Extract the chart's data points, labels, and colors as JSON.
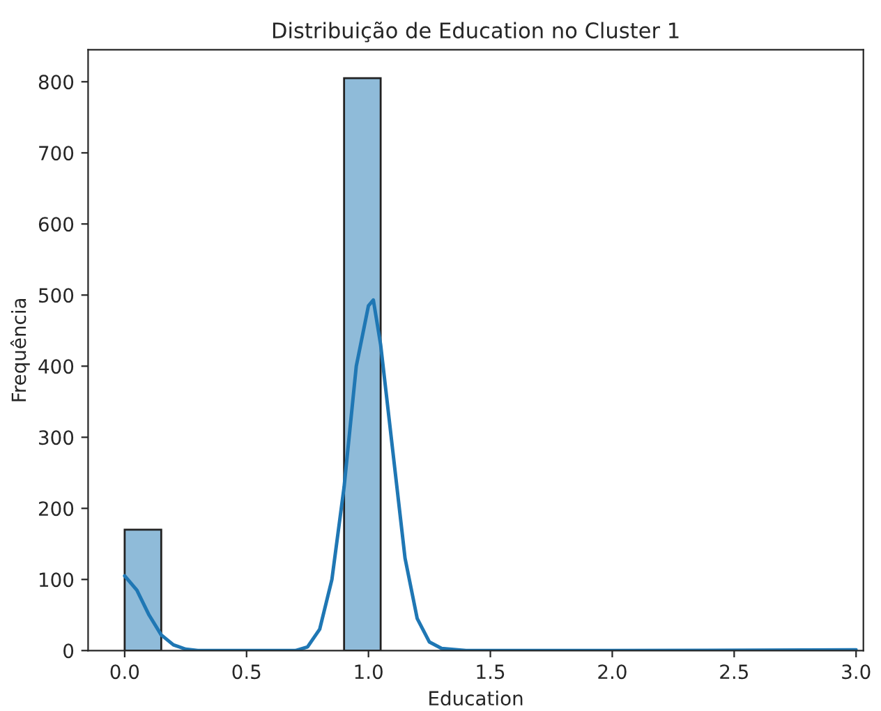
{
  "chart_data": {
    "type": "histogram",
    "title": "Distribuição de Education no Cluster 1",
    "xlabel": "Education",
    "ylabel": "Frequência",
    "bins": [
      0,
      0.15,
      0.3,
      0.45,
      0.6,
      0.75,
      0.9,
      1.05,
      1.2,
      1.35,
      1.5,
      1.65,
      1.8,
      1.95,
      2.1,
      2.25,
      2.4,
      2.55,
      2.7,
      2.85,
      3.0
    ],
    "values": [
      170,
      0,
      0,
      0,
      0,
      0,
      805,
      0,
      0,
      0,
      0,
      0,
      0,
      0,
      0,
      0,
      0,
      0,
      0,
      1
    ],
    "color": "#8fbbd9",
    "series": [
      {
        "type": "line",
        "color": "#1f77b4",
        "x": [
          0,
          0.05,
          0.1,
          0.15,
          0.2,
          0.25,
          0.3,
          0.5,
          0.7,
          0.75,
          0.8,
          0.85,
          0.9,
          0.95,
          1.0,
          1.02,
          1.05,
          1.1,
          1.15,
          1.2,
          1.25,
          1.3,
          1.4,
          2.0,
          3.0
        ],
        "values": [
          105,
          85,
          50,
          22,
          8,
          2,
          0,
          0,
          0,
          5,
          30,
          100,
          230,
          400,
          485,
          493,
          430,
          280,
          130,
          45,
          12,
          3,
          0,
          0,
          1
        ]
      }
    ],
    "xlim": [
      -0.15,
      3.03
    ],
    "ylim": [
      0,
      845
    ],
    "xticks": [
      {
        "value": 0,
        "label": "0.0"
      },
      {
        "value": 0.5,
        "label": "0.5"
      },
      {
        "value": 1,
        "label": "1.0"
      },
      {
        "value": 1.5,
        "label": "1.5"
      },
      {
        "value": 2,
        "label": "2.0"
      },
      {
        "value": 2.5,
        "label": "2.5"
      },
      {
        "value": 3,
        "label": "3.0"
      }
    ],
    "yticks": [
      0,
      100,
      200,
      300,
      400,
      500,
      600,
      700,
      800
    ],
    "grid": false,
    "legend": false
  }
}
